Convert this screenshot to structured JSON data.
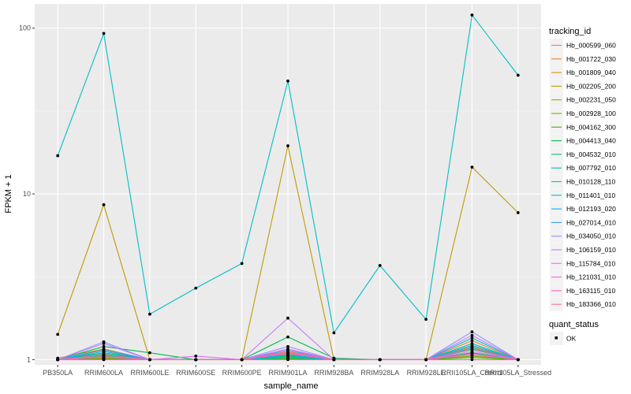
{
  "chart_data": {
    "type": "line",
    "title": "",
    "xlabel": "sample_name",
    "ylabel": "FPKM + 1",
    "y_scale": "log10",
    "ylim": [
      0.93,
      140
    ],
    "y_ticks": [
      1,
      10,
      100
    ],
    "y_tick_labels": [
      "1",
      "10",
      "100"
    ],
    "grid": true,
    "legend_position": "right",
    "categories": [
      "PB350LA",
      "RRIM600LA",
      "RRIM600LE",
      "RRIM600SE",
      "RRIM600PE",
      "RRIM901LA",
      "RRIM928BA",
      "RRIM928LA",
      "RRIM928LE",
      "RRII105LA_Control",
      "RRII105LA_Stressed"
    ],
    "series": [
      {
        "name": "Hb_000599_060",
        "color": "#F8766D",
        "values": [
          1.0,
          1.02,
          1.0,
          1.0,
          1.0,
          1.1,
          1.0,
          1.0,
          1.0,
          1.06,
          1.0
        ]
      },
      {
        "name": "Hb_001722_030",
        "color": "#EA8331",
        "values": [
          1.0,
          1.14,
          1.0,
          1.0,
          1.0,
          1.12,
          1.0,
          1.0,
          1.0,
          1.3,
          1.0
        ]
      },
      {
        "name": "Hb_001809_040",
        "color": "#D89000",
        "values": [
          1.02,
          1.16,
          1.0,
          1.0,
          1.0,
          1.08,
          1.0,
          1.0,
          1.0,
          1.2,
          1.0
        ]
      },
      {
        "name": "Hb_002205_200",
        "color": "#C09B00",
        "values": [
          1.42,
          8.6,
          1.0,
          1.0,
          1.0,
          19.5,
          1.0,
          1.0,
          1.0,
          14.5,
          7.7
        ]
      },
      {
        "name": "Hb_002231_050",
        "color": "#A3A500",
        "values": [
          1.0,
          1.05,
          1.0,
          1.0,
          1.0,
          1.04,
          1.0,
          1.0,
          1.0,
          1.09,
          1.0
        ]
      },
      {
        "name": "Hb_002928_100",
        "color": "#7CAE00",
        "values": [
          1.0,
          1.03,
          1.0,
          1.0,
          1.0,
          1.02,
          1.0,
          1.0,
          1.0,
          1.05,
          1.0
        ]
      },
      {
        "name": "Hb_004162_300",
        "color": "#39B600",
        "values": [
          1.0,
          1.01,
          1.0,
          1.0,
          1.0,
          1.01,
          1.0,
          1.0,
          1.0,
          1.03,
          1.0
        ]
      },
      {
        "name": "Hb_004413_040",
        "color": "#00BB4E",
        "values": [
          1.0,
          1.2,
          1.1,
          1.0,
          1.0,
          1.37,
          1.02,
          1.0,
          1.0,
          1.15,
          1.0
        ]
      },
      {
        "name": "Hb_004532_010",
        "color": "#00BF7D",
        "values": [
          1.0,
          1.08,
          1.0,
          1.0,
          1.0,
          1.05,
          1.0,
          1.0,
          1.0,
          1.1,
          1.0
        ]
      },
      {
        "name": "Hb_007792_010",
        "color": "#00C1A3",
        "values": [
          1.0,
          1.1,
          1.0,
          1.0,
          1.0,
          1.03,
          1.0,
          1.0,
          1.0,
          1.25,
          1.0
        ]
      },
      {
        "name": "Hb_010128_110",
        "color": "#00BFC4",
        "values": [
          17.0,
          93.0,
          1.88,
          2.7,
          3.8,
          48.0,
          1.45,
          3.7,
          1.75,
          120.0,
          52.0
        ]
      },
      {
        "name": "Hb_011401_010",
        "color": "#00BAE0",
        "values": [
          1.0,
          1.06,
          1.0,
          1.0,
          1.0,
          1.06,
          1.0,
          1.0,
          1.0,
          1.35,
          1.0
        ]
      },
      {
        "name": "Hb_012193_020",
        "color": "#00B0F6",
        "values": [
          1.0,
          1.12,
          1.0,
          1.0,
          1.0,
          1.07,
          1.0,
          1.0,
          1.0,
          1.18,
          1.0
        ]
      },
      {
        "name": "Hb_027014_010",
        "color": "#35A2FF",
        "values": [
          1.0,
          1.15,
          1.0,
          1.0,
          1.0,
          1.14,
          1.0,
          1.0,
          1.0,
          1.22,
          1.0
        ]
      },
      {
        "name": "Hb_034050_010",
        "color": "#9590FF",
        "values": [
          1.0,
          1.28,
          1.0,
          1.0,
          1.0,
          1.2,
          1.0,
          1.0,
          1.0,
          1.47,
          1.0
        ]
      },
      {
        "name": "Hb_106159_010",
        "color": "#C77CFF",
        "values": [
          1.0,
          1.25,
          1.0,
          1.0,
          1.0,
          1.78,
          1.0,
          1.0,
          1.0,
          1.4,
          1.0
        ]
      },
      {
        "name": "Hb_115784_010",
        "color": "#E76BF3",
        "values": [
          1.0,
          1.0,
          1.0,
          1.05,
          1.0,
          1.16,
          1.0,
          1.0,
          1.0,
          1.12,
          1.0
        ]
      },
      {
        "name": "Hb_121031_010",
        "color": "#FA62DB",
        "values": [
          1.0,
          1.04,
          1.0,
          1.0,
          1.0,
          1.09,
          1.0,
          1.0,
          1.0,
          1.08,
          1.0
        ]
      },
      {
        "name": "Hb_163115_010",
        "color": "#FF62BC",
        "values": [
          1.0,
          1.0,
          1.0,
          1.0,
          1.0,
          1.0,
          1.0,
          1.0,
          1.0,
          1.0,
          1.0
        ]
      },
      {
        "name": "Hb_183366_010",
        "color": "#FF6C91",
        "values": [
          1.0,
          1.07,
          1.0,
          1.0,
          1.0,
          1.11,
          1.0,
          1.0,
          1.0,
          1.16,
          1.0
        ]
      }
    ],
    "legend_title": "tracking_id",
    "shape_legend_title": "quant_status",
    "shape_legend_items": [
      "OK"
    ]
  }
}
